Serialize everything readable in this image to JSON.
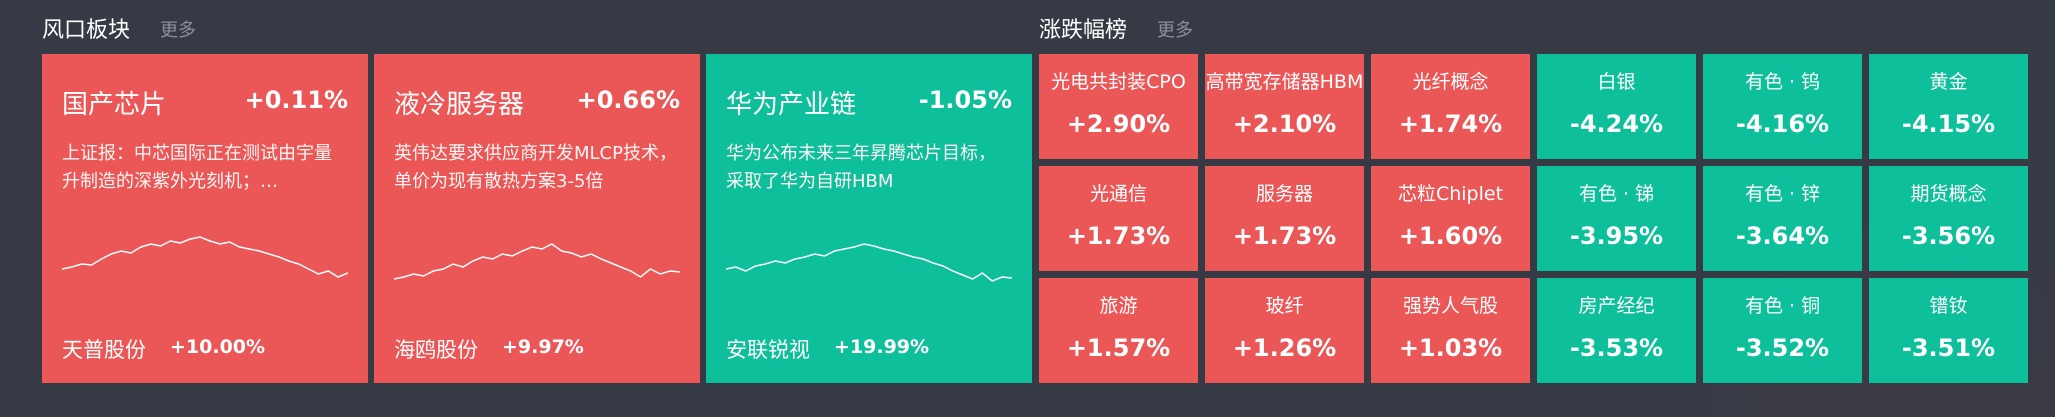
{
  "sections": [
    {
      "title": "风口板块",
      "more": "更多",
      "cards": [
        {
          "name": "国产芯片",
          "change": "+0.11%",
          "description": "上证报：中芯国际正在测试由宇量升制造的深紫外光刻机；…",
          "stock": "天普股份",
          "stock_change": "+10.00%",
          "color": "#eb5656",
          "sparkline": [
            30,
            32,
            35,
            34,
            40,
            45,
            48,
            46,
            52,
            55,
            53,
            58,
            56,
            60,
            62,
            58,
            55,
            57,
            52,
            50,
            48,
            45,
            42,
            38,
            35,
            30,
            25,
            28,
            22,
            26
          ]
        },
        {
          "name": "液冷服务器",
          "change": "+0.66%",
          "description": "英伟达要求供应商开发MLCP技术，单价为现有散热方案3-5倍",
          "stock": "海鸥股份",
          "stock_change": "+9.97%",
          "color": "#eb5656",
          "sparkline": [
            20,
            22,
            25,
            23,
            28,
            30,
            35,
            32,
            38,
            42,
            40,
            45,
            43,
            48,
            52,
            50,
            55,
            48,
            46,
            42,
            45,
            40,
            36,
            32,
            28,
            22,
            30,
            25,
            28,
            27
          ]
        },
        {
          "name": "华为产业链",
          "change": "-1.05%",
          "description": "华为公布未来三年昇腾芯片目标，采取了华为自研HBM",
          "stock": "安联锐视",
          "stock_change": "+19.99%",
          "color": "#0dbf9a",
          "sparkline": [
            30,
            32,
            28,
            33,
            35,
            38,
            36,
            40,
            42,
            45,
            43,
            48,
            50,
            52,
            55,
            53,
            50,
            48,
            45,
            42,
            40,
            36,
            33,
            28,
            24,
            20,
            26,
            18,
            22,
            21
          ]
        }
      ]
    },
    {
      "title": "涨跌幅榜",
      "more": "更多",
      "tiles": [
        {
          "name": "光电共封装CPO",
          "change": "+2.90%",
          "color": "#eb5656"
        },
        {
          "name": "高带宽存储器HBM",
          "change": "+2.10%",
          "color": "#eb5656"
        },
        {
          "name": "光纤概念",
          "change": "+1.74%",
          "color": "#eb5656"
        },
        {
          "name": "白银",
          "change": "-4.24%",
          "color": "#0dbf9a"
        },
        {
          "name": "有色 · 钨",
          "change": "-4.16%",
          "color": "#0dbf9a"
        },
        {
          "name": "黄金",
          "change": "-4.15%",
          "color": "#0dbf9a"
        },
        {
          "name": "光通信",
          "change": "+1.73%",
          "color": "#eb5656"
        },
        {
          "name": "服务器",
          "change": "+1.73%",
          "color": "#eb5656"
        },
        {
          "name": "芯粒Chiplet",
          "change": "+1.60%",
          "color": "#eb5656"
        },
        {
          "name": "有色 · 锑",
          "change": "-3.95%",
          "color": "#0dbf9a"
        },
        {
          "name": "有色 · 锌",
          "change": "-3.64%",
          "color": "#0dbf9a"
        },
        {
          "name": "期货概念",
          "change": "-3.56%",
          "color": "#0dbf9a"
        },
        {
          "name": "旅游",
          "change": "+1.57%",
          "color": "#eb5656"
        },
        {
          "name": "玻纤",
          "change": "+1.26%",
          "color": "#eb5656"
        },
        {
          "name": "强势人气股",
          "change": "+1.03%",
          "color": "#eb5656"
        },
        {
          "name": "房产经纪",
          "change": "-3.53%",
          "color": "#0dbf9a"
        },
        {
          "name": "有色 · 铜",
          "change": "-3.52%",
          "color": "#0dbf9a"
        },
        {
          "name": "镨钕",
          "change": "-3.51%",
          "color": "#0dbf9a"
        }
      ]
    }
  ]
}
